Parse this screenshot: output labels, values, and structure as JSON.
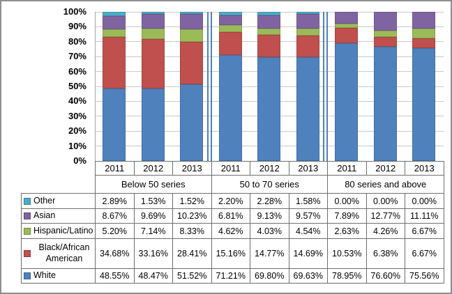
{
  "chart_data": {
    "type": "bar",
    "subtype": "100%-stacked-column",
    "title": "",
    "xlabel": "",
    "ylabel": "",
    "y_axis": {
      "min": 0,
      "max": 100,
      "grid": true,
      "ticks": [
        "0%",
        "10%",
        "20%",
        "30%",
        "40%",
        "50%",
        "60%",
        "70%",
        "80%",
        "90%",
        "100%"
      ]
    },
    "groups": [
      "Below 50 series",
      "50 to 70 series",
      "80 series and above"
    ],
    "categories": [
      "2011",
      "2012",
      "2013",
      "2011",
      "2012",
      "2013",
      "2011",
      "2012",
      "2013"
    ],
    "series": [
      {
        "name": "Other",
        "color": "#4BACC6",
        "values": [
          2.89,
          1.53,
          1.52,
          2.2,
          2.28,
          1.58,
          0.0,
          0.0,
          0.0
        ]
      },
      {
        "name": "Asian",
        "color": "#8064A2",
        "values": [
          8.67,
          9.69,
          10.23,
          6.81,
          9.13,
          9.57,
          7.89,
          12.77,
          11.11
        ]
      },
      {
        "name": "Hispanic/Latino",
        "color": "#9BBB59",
        "values": [
          5.2,
          7.14,
          8.33,
          4.62,
          4.03,
          4.54,
          2.63,
          4.26,
          6.67
        ]
      },
      {
        "name": "Black/African American",
        "color": "#C0504D",
        "values": [
          34.68,
          33.16,
          28.41,
          15.16,
          14.77,
          14.69,
          10.53,
          6.38,
          6.67
        ]
      },
      {
        "name": "White",
        "color": "#4F81BD",
        "values": [
          48.55,
          48.47,
          51.52,
          71.21,
          69.8,
          69.63,
          78.95,
          76.6,
          75.56
        ]
      }
    ],
    "stack_order_bottom_to_top": [
      "White",
      "Black/African American",
      "Hispanic/Latino",
      "Asian",
      "Other"
    ],
    "value_format": "0.00%",
    "legend_position": "table-left",
    "separator_color": "#4F81BD",
    "gridline_color": "#c9c9c9"
  }
}
